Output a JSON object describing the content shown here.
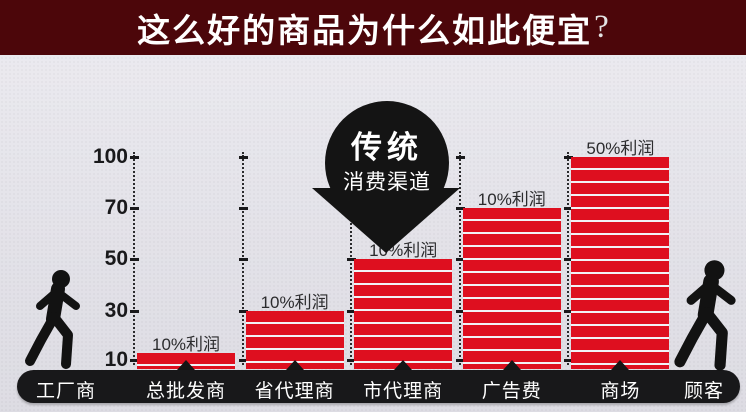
{
  "banner": {
    "title": "这么好的商品为什么如此便宜",
    "question_mark": "?",
    "bg_color": "#4c060a",
    "text_color": "#ffffff"
  },
  "balloon": {
    "line1": "传统",
    "line2": "消费渠道",
    "bg_color": "#141414",
    "text_color": "#ffffff"
  },
  "chart_data": {
    "type": "bar",
    "title": "传统消费渠道",
    "ylabel": "",
    "xlabel": "",
    "ylim": [
      10,
      100
    ],
    "y_ticks": [
      100,
      70,
      50,
      30,
      10
    ],
    "grid": "dotted-vertical-guides",
    "legend": null,
    "bar_color": "#de0f1f",
    "bar_stripe_color": "#f2f1f5",
    "stages": [
      {
        "name": "工厂商",
        "value": null,
        "profit_label": null
      },
      {
        "name": "总批发商",
        "value": 13,
        "profit_label": "10%利润"
      },
      {
        "name": "省代理商",
        "value": 30,
        "profit_label": "10%利润"
      },
      {
        "name": "市代理商",
        "value": 50,
        "profit_label": "10%利润"
      },
      {
        "name": "广告费",
        "value": 70,
        "profit_label": "10%利润"
      },
      {
        "name": "商场",
        "value": 100,
        "profit_label": "50%利润"
      },
      {
        "name": "顾客",
        "value": null,
        "profit_label": null
      }
    ]
  },
  "icons": {
    "left_person": "walking-person-icon",
    "right_person": "walking-person-icon"
  }
}
